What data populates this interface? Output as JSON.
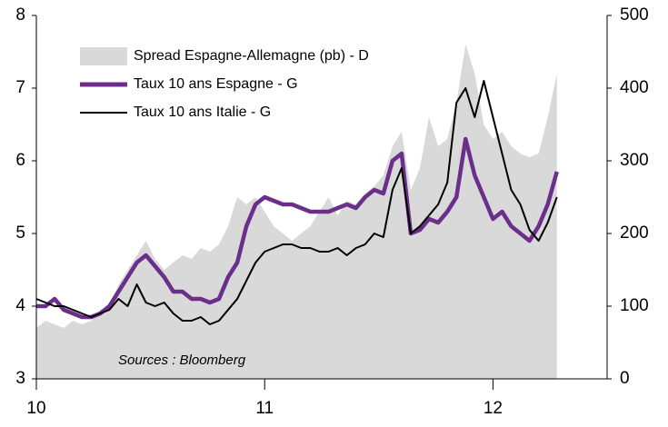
{
  "chart_data": {
    "type": "line",
    "annotation": "Sources : Bloomberg",
    "x": [
      10.0,
      10.04,
      10.08,
      10.12,
      10.16,
      10.2,
      10.24,
      10.28,
      10.32,
      10.36,
      10.4,
      10.44,
      10.48,
      10.52,
      10.56,
      10.6,
      10.64,
      10.68,
      10.72,
      10.76,
      10.8,
      10.84,
      10.88,
      10.92,
      10.96,
      11.0,
      11.04,
      11.08,
      11.12,
      11.16,
      11.2,
      11.24,
      11.28,
      11.32,
      11.36,
      11.4,
      11.44,
      11.48,
      11.52,
      11.56,
      11.6,
      11.64,
      11.68,
      11.72,
      11.76,
      11.8,
      11.84,
      11.88,
      11.92,
      11.96,
      12.0,
      12.04,
      12.08,
      12.12,
      12.16,
      12.2,
      12.24,
      12.28
    ],
    "series": [
      {
        "name": "Spread Espagne-Allemagne (pb) - D",
        "kind": "area",
        "axis": "y2",
        "color": "#d9d9d9",
        "values": [
          70,
          80,
          75,
          70,
          80,
          75,
          80,
          95,
          100,
          130,
          150,
          170,
          190,
          165,
          150,
          160,
          170,
          165,
          180,
          175,
          185,
          210,
          250,
          240,
          250,
          230,
          210,
          200,
          190,
          200,
          210,
          230,
          250,
          225,
          245,
          240,
          255,
          265,
          280,
          320,
          340,
          260,
          290,
          360,
          320,
          330,
          380,
          460,
          420,
          350,
          330,
          340,
          320,
          310,
          305,
          310,
          360,
          420
        ]
      },
      {
        "name": "Taux 10 ans Espagne - G",
        "kind": "line",
        "axis": "y",
        "color": "#6b2e8a",
        "values": [
          4.0,
          4.0,
          4.1,
          3.95,
          3.9,
          3.85,
          3.85,
          3.9,
          4.0,
          4.2,
          4.4,
          4.6,
          4.7,
          4.55,
          4.4,
          4.2,
          4.2,
          4.1,
          4.1,
          4.05,
          4.1,
          4.4,
          4.6,
          5.1,
          5.4,
          5.5,
          5.45,
          5.4,
          5.4,
          5.35,
          5.3,
          5.3,
          5.3,
          5.35,
          5.4,
          5.35,
          5.5,
          5.6,
          5.55,
          6.0,
          6.1,
          5.0,
          5.05,
          5.2,
          5.15,
          5.3,
          5.5,
          6.3,
          5.8,
          5.5,
          5.2,
          5.3,
          5.1,
          5.0,
          4.9,
          5.1,
          5.4,
          5.85
        ]
      },
      {
        "name": "Taux 10 ans Italie - G",
        "kind": "line",
        "axis": "y",
        "color": "#000000",
        "values": [
          4.1,
          4.05,
          4.0,
          4.0,
          3.95,
          3.9,
          3.85,
          3.9,
          3.95,
          4.1,
          4.0,
          4.3,
          4.05,
          4.0,
          4.05,
          3.9,
          3.8,
          3.8,
          3.85,
          3.75,
          3.8,
          3.95,
          4.1,
          4.35,
          4.6,
          4.75,
          4.8,
          4.85,
          4.85,
          4.8,
          4.8,
          4.75,
          4.75,
          4.8,
          4.7,
          4.8,
          4.85,
          5.0,
          4.95,
          5.6,
          5.9,
          5.0,
          5.1,
          5.25,
          5.4,
          5.7,
          6.8,
          7.0,
          6.6,
          7.1,
          6.6,
          6.1,
          5.6,
          5.4,
          5.05,
          4.9,
          5.15,
          5.5
        ]
      }
    ],
    "xlim": [
      10,
      12.5
    ],
    "xticks": [
      10,
      11,
      12
    ],
    "ylim": [
      3,
      8
    ],
    "yticks": [
      3,
      4,
      5,
      6,
      7,
      8
    ],
    "y2lim": [
      0,
      500
    ],
    "y2ticks": [
      0,
      100,
      200,
      300,
      400,
      500
    ]
  }
}
